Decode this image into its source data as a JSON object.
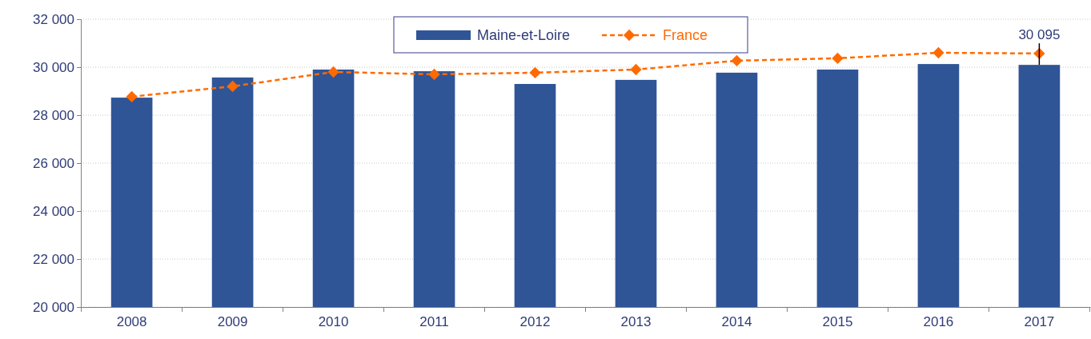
{
  "chart_data": {
    "type": "bar",
    "categories": [
      "2008",
      "2009",
      "2010",
      "2011",
      "2012",
      "2013",
      "2014",
      "2015",
      "2016",
      "2017"
    ],
    "series": [
      {
        "name": "Maine-et-Loire",
        "color": "#2f5597",
        "values": [
          28730,
          29570,
          29900,
          29830,
          29300,
          29470,
          29770,
          29900,
          30130,
          30095
        ]
      },
      {
        "name": "France",
        "type": "line",
        "color": "#ff6a00",
        "marker": "diamond",
        "line_style": "dashed",
        "values": [
          28770,
          29200,
          29800,
          29700,
          29770,
          29900,
          30270,
          30370,
          30600,
          30570
        ]
      }
    ],
    "ylim": [
      20000,
      32000
    ],
    "yticks": [
      {
        "value": 20000,
        "label": "20 000"
      },
      {
        "value": 22000,
        "label": "22 000"
      },
      {
        "value": 24000,
        "label": "24 000"
      },
      {
        "value": 26000,
        "label": "26 000"
      },
      {
        "value": 28000,
        "label": "28 000"
      },
      {
        "value": 30000,
        "label": "30 000"
      },
      {
        "value": 32000,
        "label": "32 000"
      }
    ],
    "grid": "y",
    "legend": "top",
    "annotations": [
      {
        "text": "30 095",
        "x": "2017",
        "y": 30095
      }
    ]
  }
}
